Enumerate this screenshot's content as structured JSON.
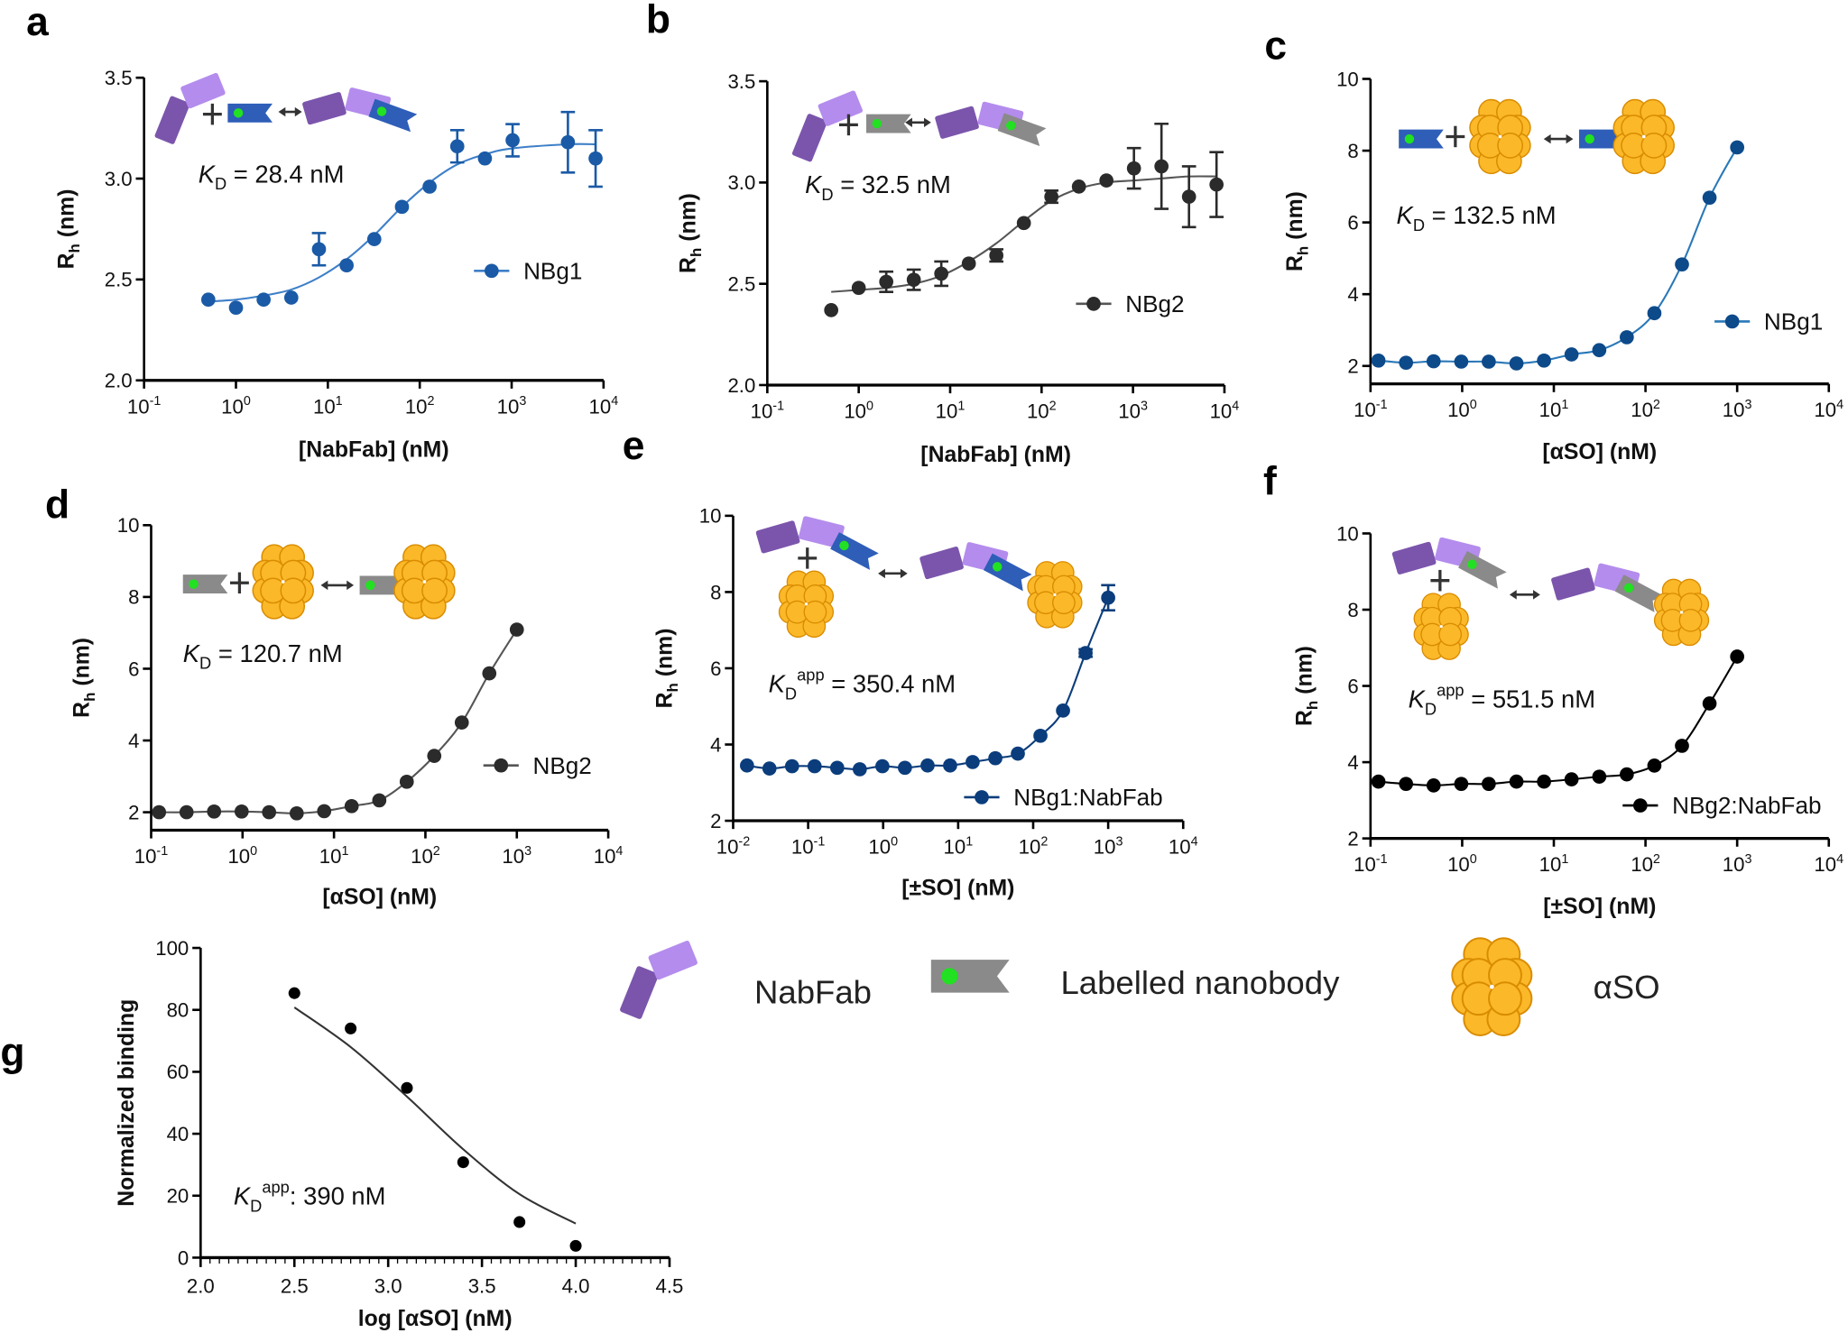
{
  "panel_letters": [
    "a",
    "b",
    "c",
    "d",
    "e",
    "f",
    "g"
  ],
  "key": {
    "items": [
      {
        "label": "NabFab",
        "icon": "nabfab-icon"
      },
      {
        "label": "Labelled nanobody",
        "icon": "labelled-nanobody-icon"
      },
      {
        "label": "αSO",
        "icon": "aso-oligomer-icon"
      }
    ]
  },
  "colors": {
    "nabfab_dark": "#7b55ac",
    "nabfab_light": "#b48ced",
    "nanobody_blue": "#2e5eb8",
    "nanobody_gray": "#8a8a8a",
    "label_green": "#22e022",
    "aso_fill": "#fbb829",
    "aso_stroke": "#d98c00"
  },
  "chart_data": [
    {
      "panel": "a",
      "type": "scatter",
      "xlabel": "[NabFab] (nM)",
      "ylabel": {
        "main": "R",
        "sub": "h",
        "rest": " (nm)"
      },
      "x_scale": "log",
      "xlim": [
        0.1,
        10000
      ],
      "xtick_exponents": [
        -1,
        0,
        1,
        2,
        3,
        4
      ],
      "ylim": [
        2.0,
        3.5
      ],
      "yticks": [
        2.0,
        2.5,
        3.0,
        3.5
      ],
      "ytick_labels": [
        "2.0",
        "2.5",
        "3.0",
        "3.5"
      ],
      "legend": "right",
      "kd": {
        "symbol": "K",
        "sub": "D",
        "sup": "",
        "value": " = 28.4 nM"
      },
      "series": [
        {
          "name": "NBg1",
          "color": "#1a5aa6",
          "line_color": "#3d7fc8",
          "x": [
            0.5,
            1,
            2,
            4,
            8,
            16,
            32,
            64,
            128,
            256,
            512,
            1024,
            4096,
            8192
          ],
          "y": [
            2.4,
            2.36,
            2.4,
            2.41,
            2.65,
            2.57,
            2.7,
            2.86,
            2.96,
            3.16,
            3.1,
            3.19,
            3.18,
            3.1
          ],
          "yerr": [
            null,
            null,
            null,
            null,
            0.08,
            null,
            null,
            null,
            null,
            0.08,
            null,
            0.08,
            0.15,
            0.14
          ],
          "fit": {
            "x": [
              0.5,
              1,
              2,
              4,
              8,
              16,
              32,
              64,
              128,
              256,
              512,
              1024,
              4096,
              8192
            ],
            "y": [
              2.39,
              2.4,
              2.42,
              2.45,
              2.51,
              2.6,
              2.72,
              2.86,
              2.98,
              3.07,
              3.12,
              3.15,
              3.17,
              3.17
            ]
          }
        }
      ]
    },
    {
      "panel": "b",
      "type": "scatter",
      "xlabel": "[NabFab] (nM)",
      "ylabel": {
        "main": "R",
        "sub": "h",
        "rest": " (nm)"
      },
      "x_scale": "log",
      "xlim": [
        0.1,
        10000
      ],
      "xtick_exponents": [
        -1,
        0,
        1,
        2,
        3,
        4
      ],
      "ylim": [
        2.0,
        3.5
      ],
      "yticks": [
        2.0,
        2.5,
        3.0,
        3.5
      ],
      "ytick_labels": [
        "2.0",
        "2.5",
        "3.0",
        "3.5"
      ],
      "legend": "right",
      "kd": {
        "symbol": "K",
        "sub": "D",
        "sup": "",
        "value": " = 32.5 nM"
      },
      "series": [
        {
          "name": "NBg2",
          "color": "#2b2b2b",
          "line_color": "#555555",
          "x": [
            0.5,
            1,
            2,
            4,
            8,
            16,
            32,
            64,
            128,
            256,
            512,
            1024,
            2048,
            4096,
            8192
          ],
          "y": [
            2.37,
            2.48,
            2.51,
            2.52,
            2.55,
            2.6,
            2.64,
            2.8,
            2.93,
            2.98,
            3.01,
            3.07,
            3.08,
            2.93,
            2.99
          ],
          "yerr": [
            null,
            null,
            0.05,
            0.05,
            0.06,
            null,
            0.03,
            null,
            0.03,
            null,
            null,
            0.1,
            0.21,
            0.15,
            0.16
          ],
          "fit": {
            "x": [
              0.5,
              1,
              2,
              4,
              8,
              16,
              32,
              64,
              128,
              256,
              512,
              1024,
              2048,
              4096,
              8192
            ],
            "y": [
              2.46,
              2.47,
              2.48,
              2.5,
              2.54,
              2.61,
              2.7,
              2.81,
              2.91,
              2.97,
              3.0,
              3.01,
              3.02,
              3.03,
              3.03
            ]
          }
        }
      ]
    },
    {
      "panel": "c",
      "type": "scatter",
      "xlabel": "[αSO] (nM)",
      "ylabel": {
        "main": "R",
        "sub": "h",
        "rest": " (nm)"
      },
      "x_scale": "log",
      "xlim": [
        0.1,
        10000
      ],
      "xtick_exponents": [
        -1,
        0,
        1,
        2,
        3,
        4
      ],
      "ylim": [
        1.5,
        10
      ],
      "yticks": [
        2,
        4,
        6,
        8,
        10
      ],
      "ytick_labels": [
        "2",
        "4",
        "6",
        "8",
        "10"
      ],
      "legend": "right",
      "kd": {
        "symbol": "K",
        "sub": "D",
        "sup": "",
        "value": " = 132.5 nM"
      },
      "series": [
        {
          "name": "NBg1",
          "color": "#0d4a8a",
          "line_color": "#2a78b8",
          "x": [
            0.122,
            0.244,
            0.488,
            0.977,
            1.95,
            3.91,
            7.81,
            15.6,
            31.3,
            62.5,
            125,
            250,
            500,
            1000
          ],
          "y": [
            2.15,
            2.09,
            2.13,
            2.12,
            2.12,
            2.07,
            2.15,
            2.32,
            2.44,
            2.8,
            3.47,
            4.83,
            6.69,
            8.09
          ]
        }
      ]
    },
    {
      "panel": "d",
      "type": "scatter",
      "xlabel": "[αSO] (nM)",
      "ylabel": {
        "main": "R",
        "sub": "h",
        "rest": " (nm)"
      },
      "x_scale": "log",
      "xlim": [
        0.1,
        10000
      ],
      "xtick_exponents": [
        -1,
        0,
        1,
        2,
        3,
        4
      ],
      "ylim": [
        1.5,
        10
      ],
      "yticks": [
        2,
        4,
        6,
        8,
        10
      ],
      "ytick_labels": [
        "2",
        "4",
        "6",
        "8",
        "10"
      ],
      "legend": "right",
      "kd": {
        "symbol": "K",
        "sub": "D",
        "sup": "",
        "value": " = 120.7 nM"
      },
      "series": [
        {
          "name": "NBg2",
          "color": "#2b2b2b",
          "line_color": "#555555",
          "x": [
            0.122,
            0.244,
            0.488,
            0.977,
            1.95,
            3.91,
            7.81,
            15.6,
            31.3,
            62.5,
            125,
            250,
            500,
            1000
          ],
          "y": [
            2.0,
            2.0,
            2.02,
            2.02,
            2.0,
            1.97,
            2.03,
            2.17,
            2.33,
            2.85,
            3.57,
            4.5,
            5.87,
            7.09
          ]
        }
      ]
    },
    {
      "panel": "e",
      "type": "scatter",
      "xlabel": "[±SO] (nM)",
      "ylabel": {
        "main": "R",
        "sub": "h",
        "rest": " (nm)"
      },
      "x_scale": "log",
      "xlim": [
        0.01,
        10000
      ],
      "xtick_exponents": [
        -2,
        -1,
        0,
        1,
        2,
        3,
        4
      ],
      "ylim": [
        2,
        10
      ],
      "yticks": [
        2,
        4,
        6,
        8,
        10
      ],
      "ytick_labels": [
        "2",
        "4",
        "6",
        "8",
        "10"
      ],
      "legend": "bottom-right",
      "kd": {
        "symbol": "K",
        "sub": "D",
        "sup": "app",
        "value": " = 350.4 nM"
      },
      "series": [
        {
          "name": "NBg1:NabFab",
          "color": "#0b3d7c",
          "line_color": "#0b3d7c",
          "x": [
            0.0153,
            0.0305,
            0.061,
            0.122,
            0.244,
            0.488,
            0.977,
            1.95,
            3.91,
            7.81,
            15.6,
            31.3,
            62.5,
            125,
            250,
            500,
            1000
          ],
          "y": [
            3.45,
            3.37,
            3.43,
            3.43,
            3.39,
            3.35,
            3.43,
            3.39,
            3.45,
            3.45,
            3.54,
            3.64,
            3.76,
            4.23,
            4.89,
            6.4,
            7.85
          ],
          "yerr": [
            null,
            null,
            null,
            null,
            null,
            null,
            null,
            null,
            null,
            null,
            null,
            null,
            null,
            null,
            null,
            0.1,
            0.33
          ]
        }
      ]
    },
    {
      "panel": "f",
      "type": "scatter",
      "xlabel": "[±SO] (nM)",
      "ylabel": {
        "main": "R",
        "sub": "h",
        "rest": " (nm)"
      },
      "x_scale": "log",
      "xlim": [
        0.1,
        10000
      ],
      "xtick_exponents": [
        -1,
        0,
        1,
        2,
        3,
        4
      ],
      "ylim": [
        2,
        10
      ],
      "yticks": [
        2,
        4,
        6,
        8,
        10
      ],
      "ytick_labels": [
        "2",
        "4",
        "6",
        "8",
        "10"
      ],
      "legend": "bottom-right",
      "kd": {
        "symbol": "K",
        "sub": "D",
        "sup": "app",
        "value": "  = 551.5 nM"
      },
      "series": [
        {
          "name": "NBg2:NabFab",
          "color": "#000000",
          "line_color": "#000000",
          "x": [
            0.122,
            0.244,
            0.488,
            0.977,
            1.95,
            3.91,
            7.81,
            15.6,
            31.3,
            62.5,
            125,
            250,
            500,
            1000
          ],
          "y": [
            3.49,
            3.43,
            3.39,
            3.43,
            3.43,
            3.49,
            3.49,
            3.55,
            3.62,
            3.68,
            3.91,
            4.43,
            5.54,
            6.77
          ]
        }
      ]
    },
    {
      "panel": "g",
      "type": "scatter",
      "xlabel": "log [αSO]  (nM)",
      "ylabel": {
        "main": "Normalized binding",
        "sub": "",
        "rest": ""
      },
      "x_scale": "linear",
      "xlim": [
        2.0,
        4.5
      ],
      "xticks": [
        2.0,
        2.5,
        3.0,
        3.5,
        4.0,
        4.5
      ],
      "xtick_labels": [
        "2.0",
        "2.5",
        "3.0",
        "3.5",
        "4.0",
        "4.5"
      ],
      "ylim": [
        0,
        100
      ],
      "yticks": [
        0,
        20,
        40,
        60,
        80,
        100
      ],
      "ytick_labels": [
        "0",
        "20",
        "40",
        "60",
        "80",
        "100"
      ],
      "legend": "none",
      "kd": {
        "symbol": "K",
        "sub": "D",
        "sup": "app",
        "value": ": 390 nM"
      },
      "series": [
        {
          "color": "#000000",
          "line_color": "#333333",
          "x": [
            2.5,
            2.8,
            3.1,
            3.4,
            3.7,
            4.0
          ],
          "y": [
            85.4,
            74.0,
            54.8,
            30.8,
            11.5,
            3.8
          ],
          "fit": {
            "x": [
              2.5,
              2.8,
              3.1,
              3.4,
              3.7,
              4.0
            ],
            "y": [
              80.8,
              68.0,
              52.0,
              35.0,
              20.5,
              11.0
            ]
          }
        }
      ]
    }
  ]
}
